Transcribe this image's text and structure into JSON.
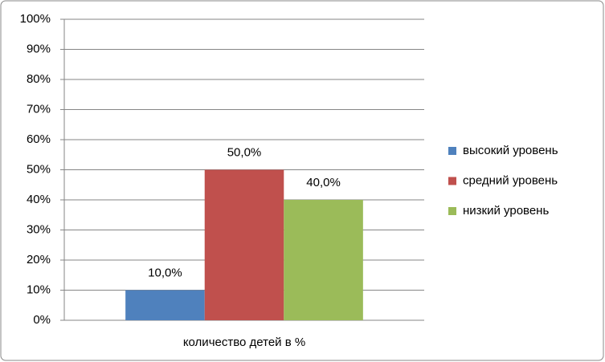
{
  "chart_data": {
    "type": "bar",
    "categories": [
      "количество детей в %"
    ],
    "series": [
      {
        "name": "высокий уровень",
        "color": "#4f81bd",
        "values": [
          10
        ],
        "value_labels": [
          "10,0%"
        ]
      },
      {
        "name": "средний уровень",
        "color": "#c0504d",
        "values": [
          50
        ],
        "value_labels": [
          "50,0%"
        ]
      },
      {
        "name": "низкий уровень",
        "color": "#9bbb59",
        "values": [
          40
        ],
        "value_labels": [
          "40,0%"
        ]
      }
    ],
    "ylim": [
      0,
      100
    ],
    "yticks": [
      {
        "value": 0,
        "label": "0%"
      },
      {
        "value": 10,
        "label": "10%"
      },
      {
        "value": 20,
        "label": "20%"
      },
      {
        "value": 30,
        "label": "30%"
      },
      {
        "value": 40,
        "label": "40%"
      },
      {
        "value": 50,
        "label": "50%"
      },
      {
        "value": 60,
        "label": "60%"
      },
      {
        "value": 70,
        "label": "70%"
      },
      {
        "value": 80,
        "label": "80%"
      },
      {
        "value": 90,
        "label": "90%"
      },
      {
        "value": 100,
        "label": "100%"
      }
    ],
    "grid": true,
    "legend": "right"
  }
}
